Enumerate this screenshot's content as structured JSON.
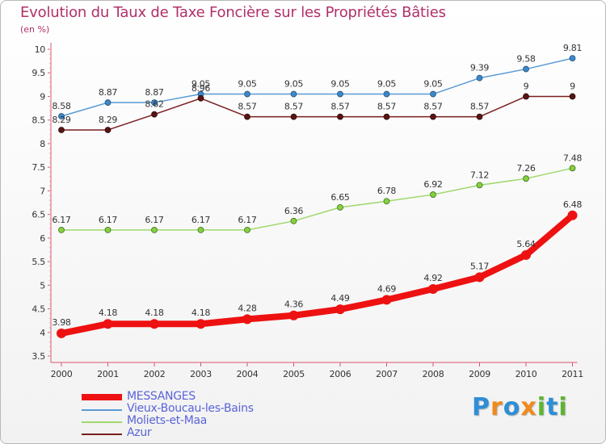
{
  "chart_data": {
    "type": "line",
    "title": "Evolution du Taux de Taxe Foncière sur les Propriétés Bâties",
    "ylabel": "(en %)",
    "xlabel": "",
    "x": [
      "2000",
      "2001",
      "2002",
      "2003",
      "2004",
      "2005",
      "2006",
      "2007",
      "2008",
      "2009",
      "2010",
      "2011"
    ],
    "ylim": [
      3.5,
      10
    ],
    "yticks": [
      "3.5",
      "4",
      "4.5",
      "5",
      "5.5",
      "6",
      "6.5",
      "7",
      "7.5",
      "8",
      "8.5",
      "9",
      "9.5",
      "10"
    ],
    "series": [
      {
        "name": "Vieux-Boucau-les-Bains",
        "color": "#5b9bd5",
        "values": [
          8.58,
          8.87,
          8.87,
          9.05,
          9.05,
          9.05,
          9.05,
          9.05,
          9.05,
          9.39,
          9.58,
          9.81
        ],
        "labels": [
          "8.58",
          "8.87",
          "8.87",
          "9.05",
          "9.05",
          "9.05",
          "9.05",
          "9.05",
          "9.05",
          "9.39",
          "9.58",
          "9.81"
        ]
      },
      {
        "name": "Azur",
        "color": "#7a1f1f",
        "values": [
          8.29,
          8.29,
          8.62,
          8.96,
          8.57,
          8.57,
          8.57,
          8.57,
          8.57,
          8.57,
          9,
          9
        ],
        "labels": [
          "8.29",
          "8.29",
          "8.62",
          "8.96",
          "8.57",
          "8.57",
          "8.57",
          "8.57",
          "8.57",
          "8.57",
          "9",
          "9"
        ]
      },
      {
        "name": "Moliets-et-Maa",
        "color": "#9ed86b",
        "values": [
          6.17,
          6.17,
          6.17,
          6.17,
          6.17,
          6.36,
          6.65,
          6.78,
          6.92,
          7.12,
          7.26,
          7.48
        ],
        "labels": [
          "6.17",
          "6.17",
          "6.17",
          "6.17",
          "6.17",
          "6.36",
          "6.65",
          "6.78",
          "6.92",
          "7.12",
          "7.26",
          "7.48"
        ]
      },
      {
        "name": "MESSANGES",
        "color": "#ee1111",
        "values": [
          3.98,
          4.18,
          4.18,
          4.18,
          4.28,
          4.36,
          4.49,
          4.69,
          4.92,
          5.17,
          5.64,
          6.48
        ],
        "labels": [
          "3.98",
          "4.18",
          "4.18",
          "4.18",
          "4.28",
          "4.36",
          "4.49",
          "4.69",
          "4.92",
          "5.17",
          "5.64",
          "6.48"
        ]
      }
    ],
    "legend": [
      "MESSANGES",
      "Vieux-Boucau-les-Bains",
      "Moliets-et-Maa",
      "Azur"
    ],
    "grid": false
  },
  "logo": {
    "text": "Proxiti",
    "letters": [
      "P",
      "r",
      "o",
      "x",
      "i",
      "t",
      "i"
    ],
    "colors": [
      "#2e8fd6",
      "#f08a1c",
      "#2e8fd6",
      "#f08a1c",
      "#5cb531",
      "#2e8fd6",
      "#5cb531"
    ]
  }
}
